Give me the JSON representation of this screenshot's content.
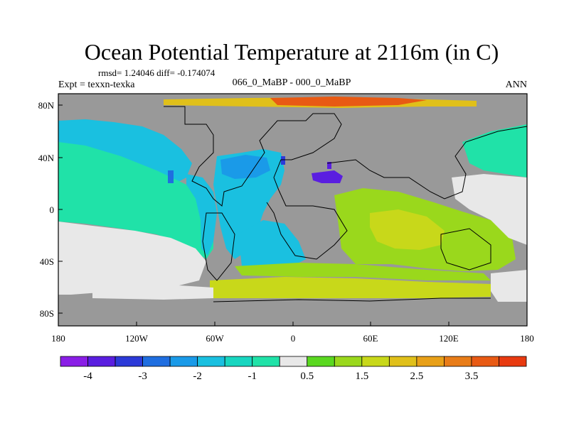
{
  "title": "Ocean Potential Temperature at 2116m (in C)",
  "stats": "rmsd= 1.24046 diff= -0.174074",
  "expt": "Expt = texxn-texka",
  "subtitle": "066_0_MaBP - 000_0_MaBP",
  "season": "ANN",
  "lat_ticks": [
    "80N",
    "40N",
    "0",
    "40S",
    "80S"
  ],
  "lon_ticks": [
    "180",
    "120W",
    "60W",
    "0",
    "60E",
    "120E",
    "180"
  ],
  "colorbar": {
    "colors": [
      "#8a1ee6",
      "#5a1ee0",
      "#2c3ad8",
      "#1f6ee0",
      "#1a9ae8",
      "#1ac0e0",
      "#18d6c0",
      "#20e2a8",
      "#e8e8e8",
      "#5ad820",
      "#9ad81c",
      "#c8d81a",
      "#e0c01a",
      "#e8a018",
      "#e87c18",
      "#e85a14",
      "#e83a10"
    ],
    "labels": [
      "-4",
      "-3",
      "-2",
      "-1",
      "0.5",
      "1.5",
      "2.5",
      "3.5"
    ]
  },
  "colors": {
    "land": "#999999",
    "cyan": "#1ac0e0",
    "teal": "#20e2a8",
    "green": "#9ad81c",
    "yellow": "#c8d81a",
    "orange": "#e0c01a"
  }
}
